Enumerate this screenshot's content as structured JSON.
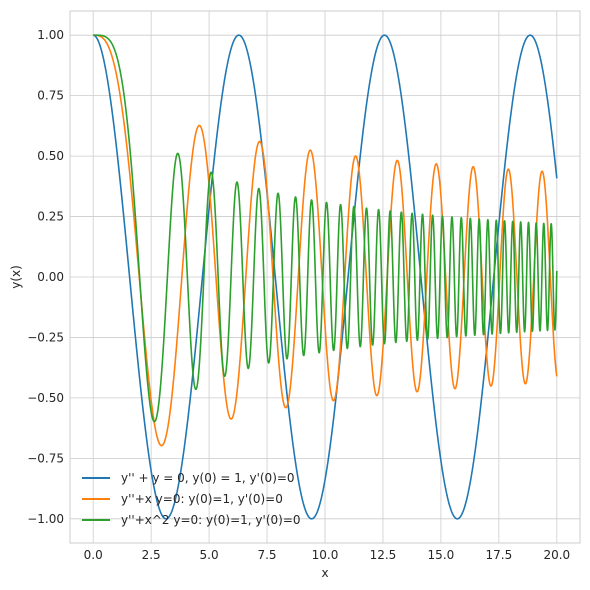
{
  "chart_data": {
    "type": "line",
    "xlabel": "x",
    "ylabel": "y(x)",
    "xlim": [
      -1.0,
      21.0
    ],
    "ylim": [
      -1.1,
      1.1
    ],
    "xticks": [
      0.0,
      2.5,
      5.0,
      7.5,
      10.0,
      12.5,
      15.0,
      17.5,
      20.0
    ],
    "xtick_labels": [
      "0.0",
      "2.5",
      "5.0",
      "7.5",
      "10.0",
      "12.5",
      "15.0",
      "17.5",
      "20.0"
    ],
    "yticks": [
      -1.0,
      -0.75,
      -0.5,
      -0.25,
      0.0,
      0.25,
      0.5,
      0.75,
      1.0
    ],
    "ytick_labels": [
      "−1.00",
      "−0.75",
      "−0.50",
      "−0.25",
      "0.00",
      "0.25",
      "0.50",
      "0.75",
      "1.00"
    ],
    "grid": true,
    "legend_position": "lower-left",
    "x_range": [
      0.0,
      20.0
    ],
    "series": [
      {
        "name": "y'' + y = 0, y(0) = 1, y'(0)=0",
        "equation_power": 0,
        "color": "#1f77b4",
        "points": [
          [
            0.0,
            1.0
          ],
          [
            1.57,
            0.0
          ],
          [
            3.14,
            -1.0
          ],
          [
            4.71,
            0.0
          ],
          [
            6.28,
            1.0
          ],
          [
            7.85,
            0.0
          ],
          [
            9.42,
            -1.0
          ],
          [
            11.0,
            0.0
          ],
          [
            12.57,
            1.0
          ],
          [
            14.14,
            0.0
          ],
          [
            15.71,
            -1.0
          ],
          [
            17.28,
            0.0
          ],
          [
            18.85,
            1.0
          ],
          [
            20.0,
            0.41
          ]
        ]
      },
      {
        "name": "y''+x y=0: y(0)=1, y'(0)=0",
        "equation_power": 1,
        "color": "#ff7f0e",
        "points": [
          [
            0.0,
            1.0
          ],
          [
            2.85,
            -0.7
          ],
          [
            4.5,
            0.62
          ],
          [
            5.7,
            -0.58
          ],
          [
            7.1,
            0.56
          ],
          [
            8.3,
            -0.54
          ],
          [
            9.3,
            0.52
          ],
          [
            10.5,
            -0.51
          ],
          [
            12.5,
            0.5
          ],
          [
            15.0,
            0.47
          ],
          [
            17.5,
            -0.45
          ],
          [
            18.7,
            0.44
          ],
          [
            20.0,
            -0.41
          ]
        ]
      },
      {
        "name": "y''+x^2 y=0: y(0)=1, y'(0)=0",
        "equation_power": 2,
        "color": "#2ca02c",
        "points": [
          [
            0.0,
            1.0
          ],
          [
            2.6,
            -0.6
          ],
          [
            3.6,
            0.51
          ],
          [
            4.4,
            -0.47
          ],
          [
            5.1,
            0.43
          ],
          [
            5.6,
            -0.41
          ],
          [
            6.1,
            0.39
          ],
          [
            10.0,
            0.3
          ],
          [
            15.0,
            0.25
          ],
          [
            20.0,
            0.03
          ]
        ]
      }
    ]
  }
}
